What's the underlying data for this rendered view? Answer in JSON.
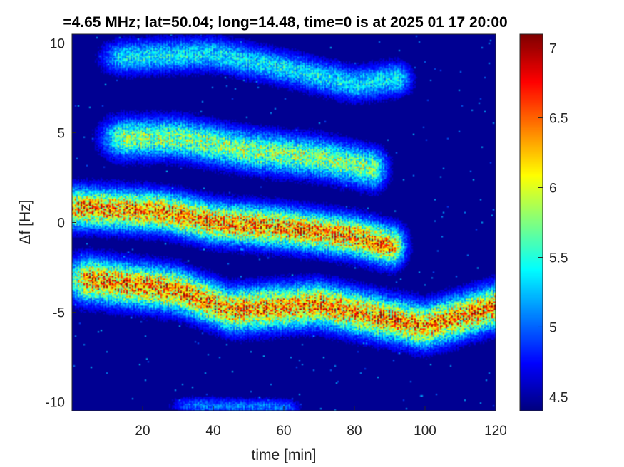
{
  "chart_data": {
    "type": "heatmap",
    "title": "=4.65 MHz;  lat=50.04; long=14.48, time=0 is at 2025 01 17 20:00",
    "xlabel": "time [min]",
    "ylabel": "Δf [Hz]",
    "xlim": [
      0,
      120
    ],
    "ylim": [
      -10.5,
      10.5
    ],
    "xticks": [
      20,
      40,
      60,
      80,
      100,
      120
    ],
    "xtick_labels": [
      "20",
      "40",
      "60",
      "80",
      "100",
      "120"
    ],
    "yticks": [
      10,
      5,
      0,
      -5,
      -10
    ],
    "ytick_labels": [
      "10",
      "5",
      "0",
      "-5",
      "-10"
    ],
    "colorbar": {
      "range": [
        4.4,
        7.1
      ],
      "ticks": [
        7,
        6.5,
        6,
        5.5,
        5,
        4.5
      ],
      "tick_labels": [
        "7",
        "6.5",
        "6",
        "5.5",
        "5",
        "4.5"
      ],
      "colormap": "jet"
    },
    "background_value": 4.45,
    "bands": [
      {
        "center": [
          [
            15,
            9.2
          ],
          [
            40,
            9.4
          ],
          [
            60,
            8.6
          ],
          [
            80,
            7.7
          ],
          [
            92,
            8.0
          ]
        ],
        "halfwidth": 1.0,
        "peak": 5.6
      },
      {
        "center": [
          [
            15,
            4.7
          ],
          [
            30,
            4.7
          ],
          [
            50,
            4.0
          ],
          [
            70,
            3.6
          ],
          [
            85,
            3.0
          ]
        ],
        "halfwidth": 1.2,
        "peak": 6.1
      },
      {
        "center": [
          [
            2,
            0.8
          ],
          [
            25,
            0.6
          ],
          [
            40,
            0.0
          ],
          [
            60,
            -0.3
          ],
          [
            80,
            -0.8
          ],
          [
            90,
            -1.3
          ]
        ],
        "halfwidth": 1.2,
        "peak": 6.9
      },
      {
        "center": [
          [
            5,
            -3.2
          ],
          [
            30,
            -3.8
          ],
          [
            45,
            -4.9
          ],
          [
            70,
            -4.6
          ],
          [
            90,
            -5.4
          ],
          [
            100,
            -5.8
          ],
          [
            120,
            -4.7
          ]
        ],
        "halfwidth": 1.3,
        "peak": 6.9
      },
      {
        "center": [
          [
            35,
            -10.2
          ],
          [
            60,
            -10.3
          ]
        ],
        "halfwidth": 0.5,
        "peak": 5.2
      }
    ]
  }
}
